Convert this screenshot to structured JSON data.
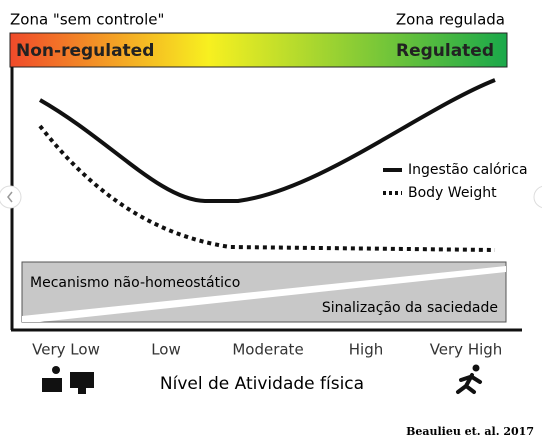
{
  "header": {
    "left_zone": "Zona \"sem controle\"",
    "right_zone": "Zona regulada"
  },
  "bar": {
    "left": "Non-regulated",
    "right": "Regulated"
  },
  "legend": {
    "solid": "Ingestão calórica",
    "dotted": "Body Weight"
  },
  "box": {
    "top": "Mecanismo não-homeostático",
    "bottom": "Sinalização da saciedade"
  },
  "x_axis": {
    "categories": [
      "Very Low",
      "Low",
      "Moderate",
      "High",
      "Very High"
    ],
    "title": "Nível de Atividade física"
  },
  "source": "Beaulieu et. al. 2017"
}
